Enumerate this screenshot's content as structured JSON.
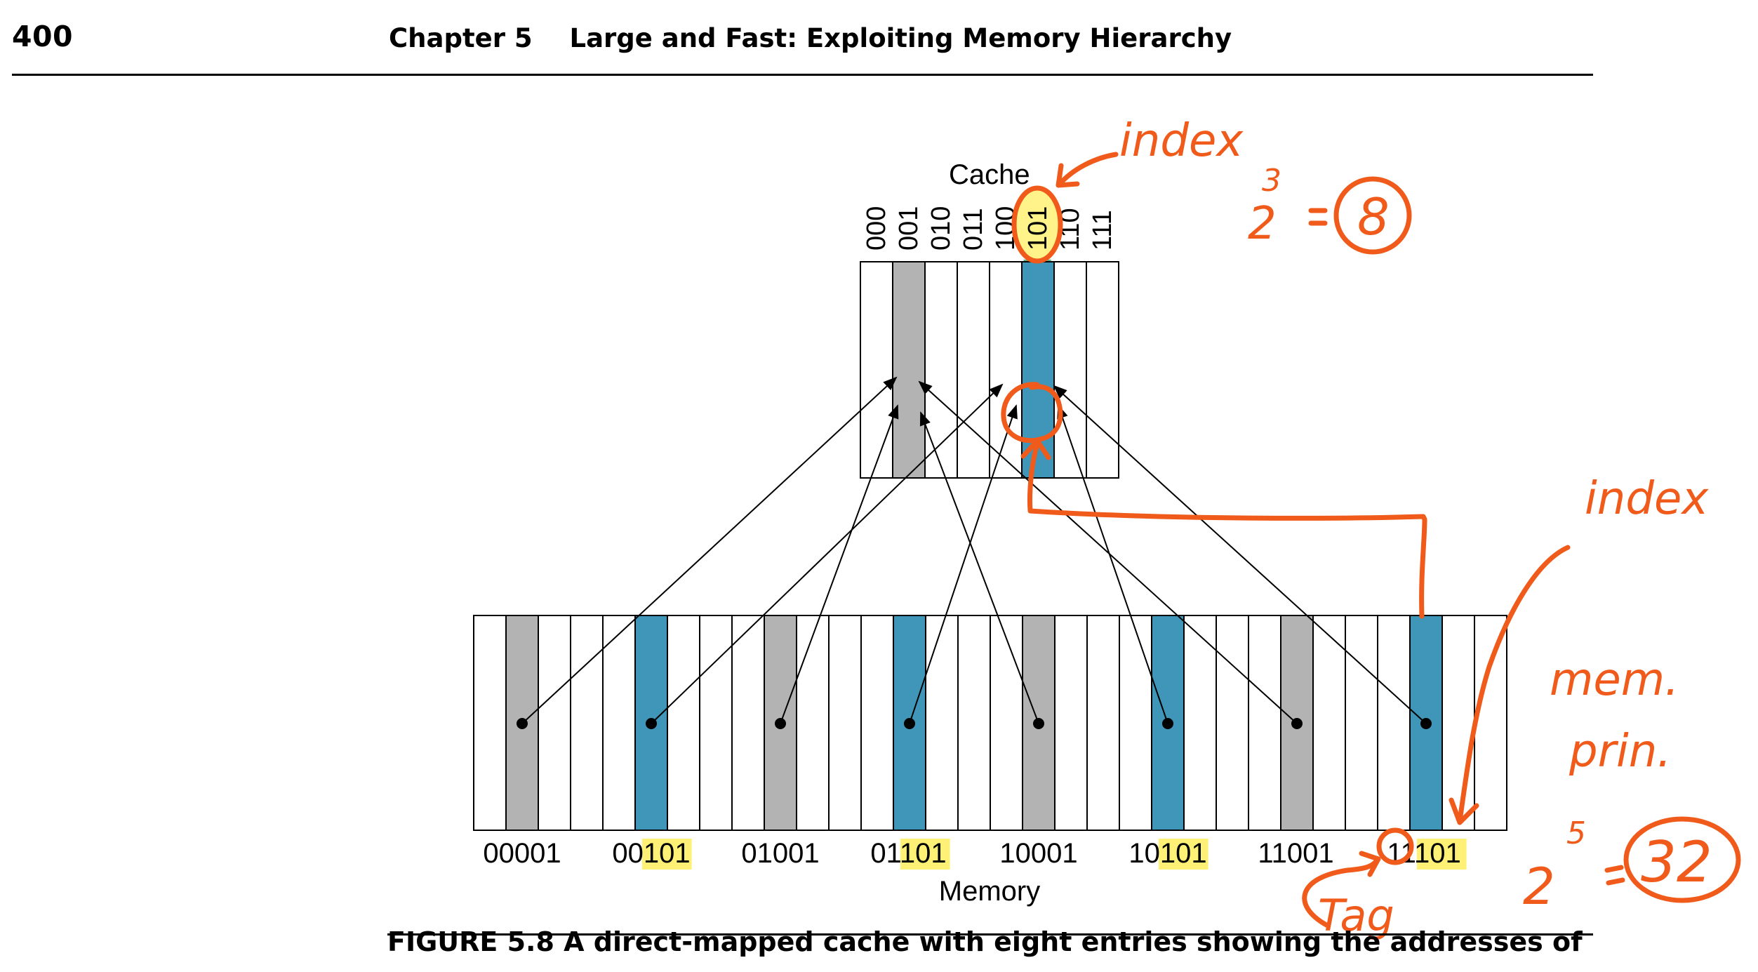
{
  "header": {
    "page_number": "400",
    "chapter": "Chapter 5",
    "title": "Large and Fast: Exploiting Memory Hierarchy"
  },
  "figure": {
    "cache_label": "Cache",
    "cache_indices": [
      "000",
      "001",
      "010",
      "011",
      "100",
      "101",
      "110",
      "111"
    ],
    "memory_label": "Memory",
    "memory_addresses": [
      "00001",
      "00101",
      "01001",
      "01101",
      "10001",
      "10101",
      "11001",
      "11101"
    ],
    "highlight_color": "#fff176",
    "gray_block_color": "#b3b3b3",
    "blue_block_color": "#4096b8"
  },
  "annotations": {
    "index_top": "index",
    "power_top_base": "2",
    "power_top_exp": "3",
    "power_top_result": "8",
    "index_right": "index",
    "mem_line1": "mem.",
    "mem_line2": "prin.",
    "power_bottom_base": "2",
    "power_bottom_exp": "5",
    "power_bottom_result": "32",
    "tag": "Tag",
    "ink_color": "#f05a1a"
  },
  "caption_stub": "FIGURE 5.8 A direct-mapped cache with eight entries showing the addresses of"
}
